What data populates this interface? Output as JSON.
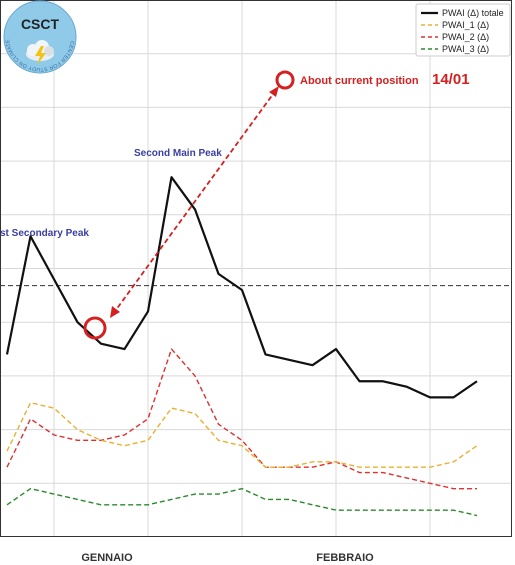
{
  "logo": {
    "acronym": "CSCT",
    "ring_text": "CENTER FOR STUDY ON CLIMATE AND TELECONNECTIONS"
  },
  "annotations": {
    "main_peak": "Second Main Peak",
    "secondary_peak": "st Secondary Peak",
    "current_label": "About current position",
    "current_date": "14/01"
  },
  "colors": {
    "totale": "#111111",
    "pwai_1": "#e8b030",
    "pwai_2": "#e03030",
    "pwai_3": "#2a8a2a",
    "annotation_red": "#d42020",
    "annotation_blue": "#3a3fa0",
    "grid": "#d9d9d9",
    "threshold": "#333333"
  },
  "chart_data": {
    "type": "line",
    "x_labels": [
      "GENNAIO",
      "FEBBRAIO"
    ],
    "xlabel": "",
    "ylabel": "",
    "ylim": [
      0,
      100
    ],
    "grid": true,
    "legend_position": "top-right",
    "x": [
      0,
      1,
      2,
      3,
      4,
      5,
      6,
      7,
      8,
      9,
      10,
      11,
      12,
      13,
      14,
      15,
      16,
      17,
      18,
      19,
      20
    ],
    "threshold": 46.8,
    "series": [
      {
        "name": "PWAI (Δ) totale",
        "style": "solid",
        "values": [
          34,
          56,
          48,
          40,
          36,
          35,
          42,
          67,
          61,
          49,
          46,
          34,
          33,
          32,
          35,
          29,
          29,
          28,
          26,
          26,
          29
        ]
      },
      {
        "name": "PWAI_1 (Δ)",
        "style": "dashed",
        "values": [
          16,
          25,
          24,
          20,
          18,
          17,
          18,
          24,
          23,
          18,
          17,
          13,
          13,
          14,
          14,
          13,
          13,
          13,
          13,
          14,
          17
        ]
      },
      {
        "name": "PWAI_2 (Δ)",
        "style": "dashed",
        "values": [
          13,
          22,
          19,
          18,
          18,
          19,
          22,
          35,
          30,
          21,
          18,
          13,
          13,
          13,
          14,
          12,
          12,
          11,
          10,
          9,
          9
        ]
      },
      {
        "name": "PWAI_3 (Δ)",
        "style": "dashed",
        "values": [
          6,
          9,
          8,
          7,
          6,
          6,
          6,
          7,
          8,
          8,
          9,
          7,
          7,
          6,
          5,
          5,
          5,
          5,
          5,
          5,
          4
        ]
      }
    ]
  }
}
